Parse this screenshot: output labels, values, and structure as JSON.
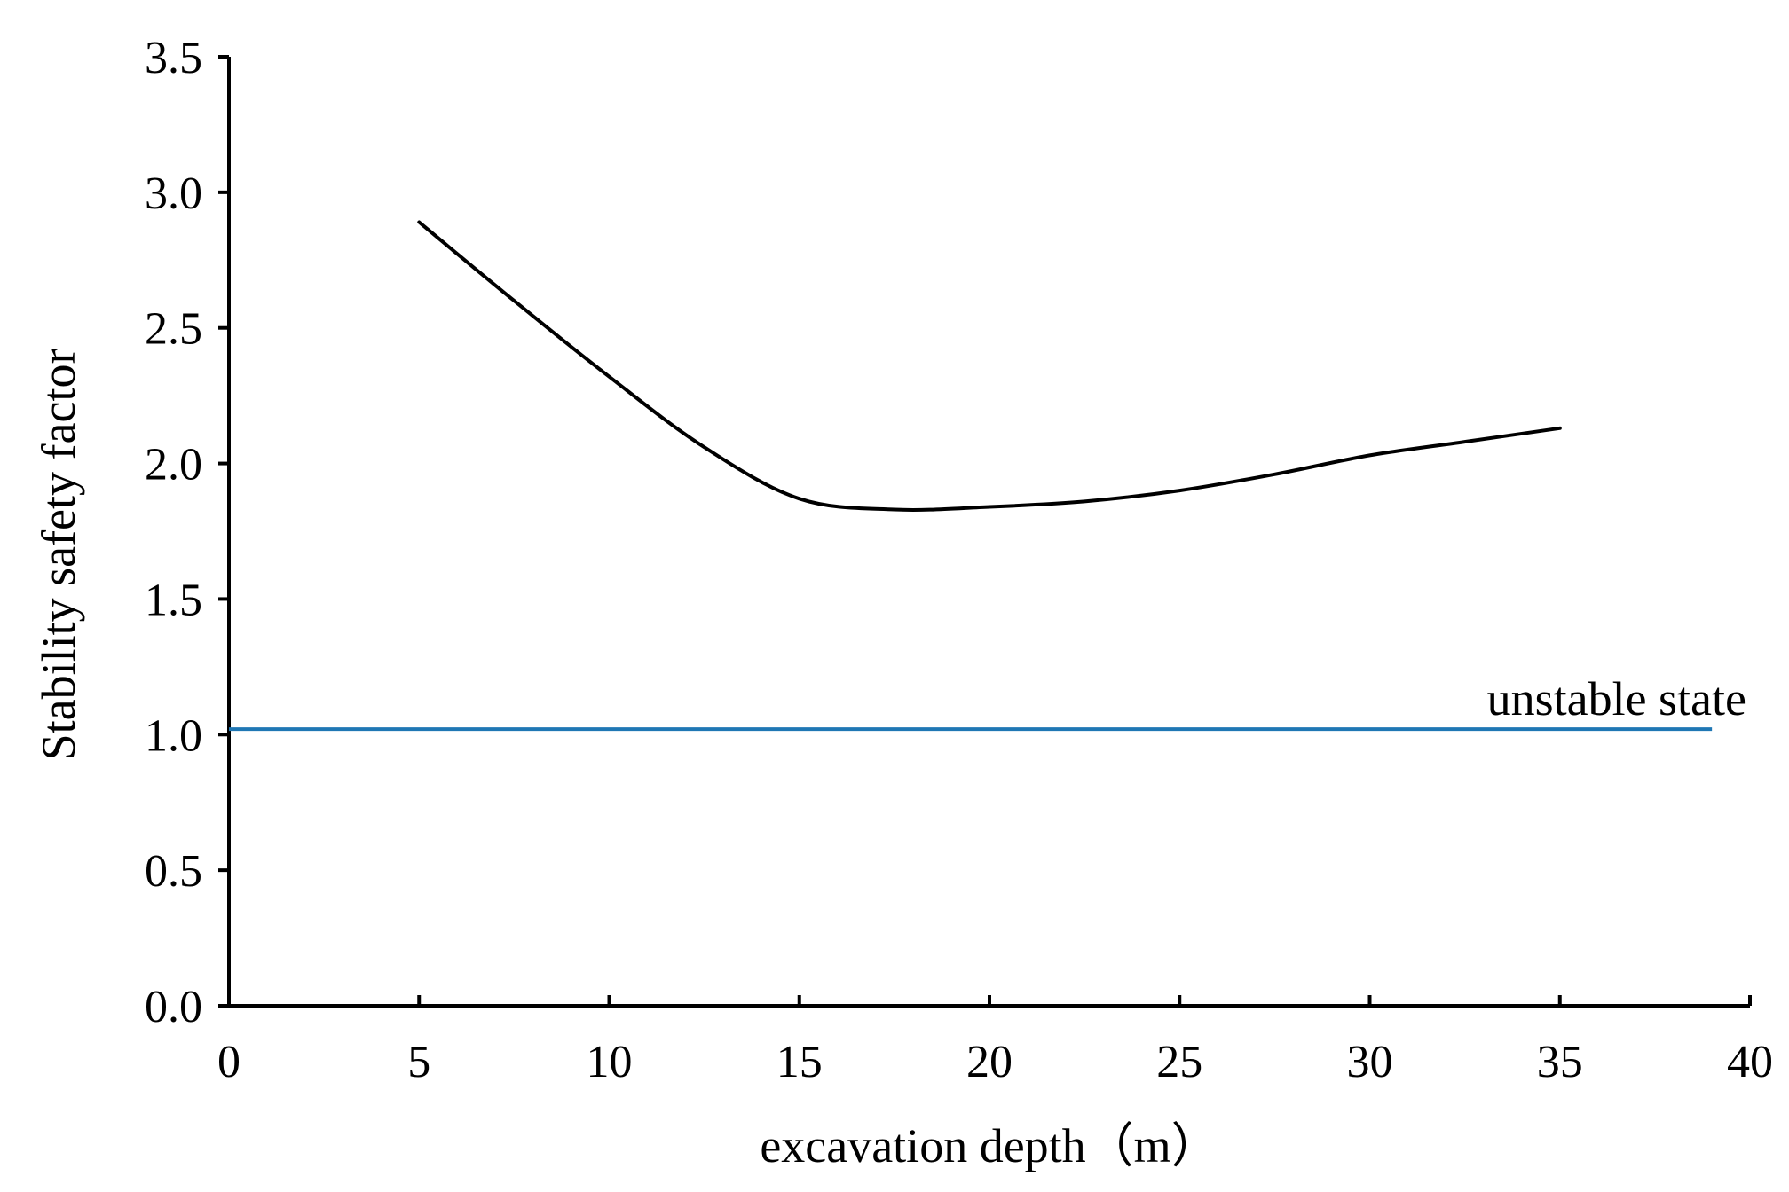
{
  "chart_data": {
    "type": "line",
    "title": "",
    "xlabel": "excavation depth（m）",
    "ylabel": "Stability safety factor",
    "xlim": [
      0,
      40
    ],
    "ylim": [
      0,
      3.5
    ],
    "xticks": [
      "0",
      "5",
      "10",
      "15",
      "20",
      "25",
      "30",
      "35",
      "40"
    ],
    "yticks": [
      "0.0",
      "0.5",
      "1.0",
      "1.5",
      "2.0",
      "2.5",
      "3.0",
      "3.5"
    ],
    "grid": false,
    "series": [
      {
        "name": "stability safety factor",
        "color": "#000000",
        "x": [
          5,
          7.5,
          10,
          12.5,
          15,
          17.5,
          20,
          22.5,
          25,
          27.5,
          30,
          32.5,
          35
        ],
        "values": [
          2.89,
          2.6,
          2.32,
          2.06,
          1.87,
          1.83,
          1.84,
          1.86,
          1.9,
          1.96,
          2.03,
          2.08,
          2.13
        ]
      }
    ],
    "reference_line": {
      "label": "unstable state",
      "color": "#1f77b4",
      "y": 1.02,
      "x_start": 0,
      "x_end": 39
    }
  }
}
